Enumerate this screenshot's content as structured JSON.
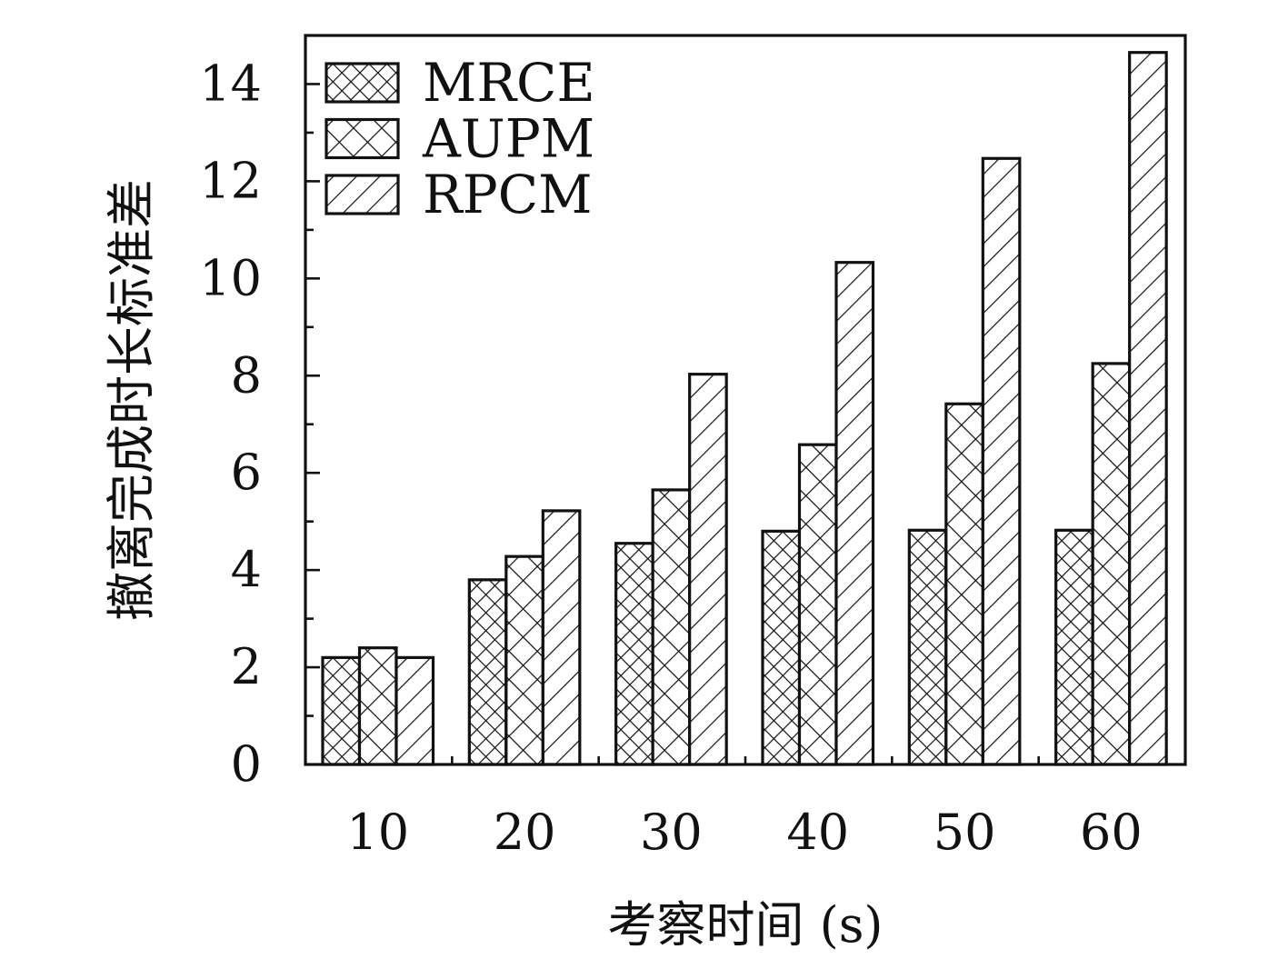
{
  "chart_data": {
    "type": "bar",
    "xlabel": "考察时间 (s)",
    "ylabel": "撤离完成时长标准差",
    "categories": [
      "10",
      "20",
      "30",
      "40",
      "50",
      "60"
    ],
    "ylim": [
      0,
      15
    ],
    "yticks": [
      "0",
      "2",
      "4",
      "6",
      "8",
      "10",
      "12",
      "14"
    ],
    "legend_position": "top-left",
    "grid": false,
    "series": [
      {
        "name": "MRCE",
        "pattern": "crosshatch-dense",
        "values": [
          2.2,
          3.8,
          4.55,
          4.8,
          4.82,
          4.82
        ]
      },
      {
        "name": "AUPM",
        "pattern": "crosshatch",
        "values": [
          2.4,
          4.28,
          5.65,
          6.58,
          7.42,
          8.25
        ]
      },
      {
        "name": "RPCM",
        "pattern": "diagonal",
        "values": [
          2.2,
          5.22,
          8.03,
          10.33,
          12.47,
          14.65
        ]
      }
    ]
  }
}
